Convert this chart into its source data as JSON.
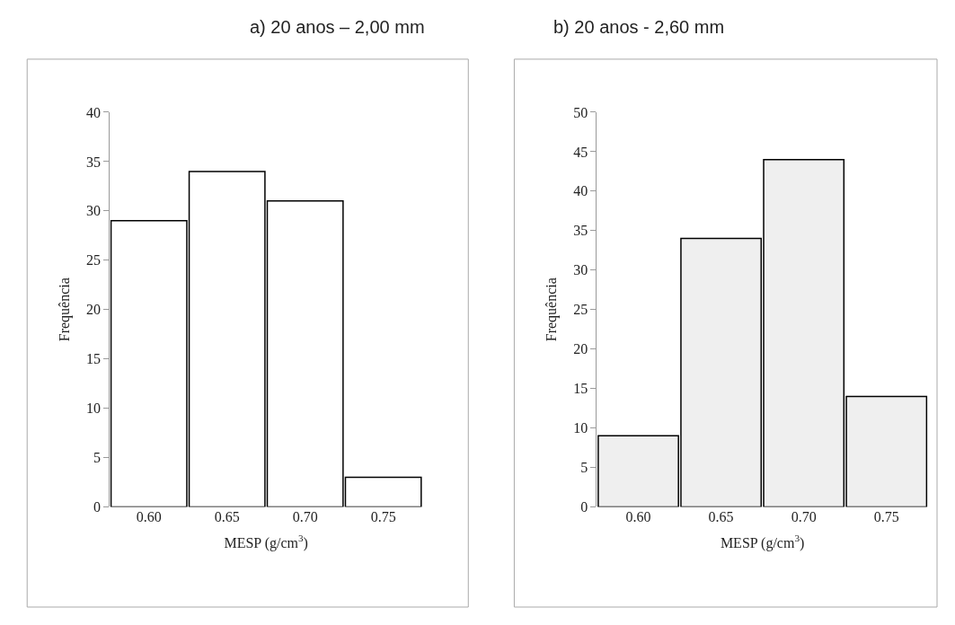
{
  "chart_data": [
    {
      "type": "bar",
      "title": "a) 20 anos – 2,00 mm",
      "xlabel": "MESP (g/cm$^{3}$)",
      "ylabel": "Frequência",
      "categories": [
        "0.60",
        "0.65",
        "0.70",
        "0.75"
      ],
      "values": [
        29,
        34,
        31,
        3
      ],
      "color": "#ffffff",
      "ylim": [
        0,
        40
      ],
      "yticks": [
        0,
        5,
        10,
        15,
        20,
        25,
        30,
        35,
        40
      ]
    },
    {
      "type": "bar",
      "title": "b) 20 anos - 2,60 mm",
      "xlabel": "MESP (g/cm$^{3}$)",
      "ylabel": "Frequência",
      "categories": [
        "0.60",
        "0.65",
        "0.70",
        "0.75"
      ],
      "values": [
        9,
        34,
        44,
        14
      ],
      "color": "#efefef",
      "ylim": [
        0,
        50
      ],
      "yticks": [
        0,
        5,
        10,
        15,
        20,
        25,
        30,
        35,
        40,
        45,
        50
      ]
    }
  ]
}
